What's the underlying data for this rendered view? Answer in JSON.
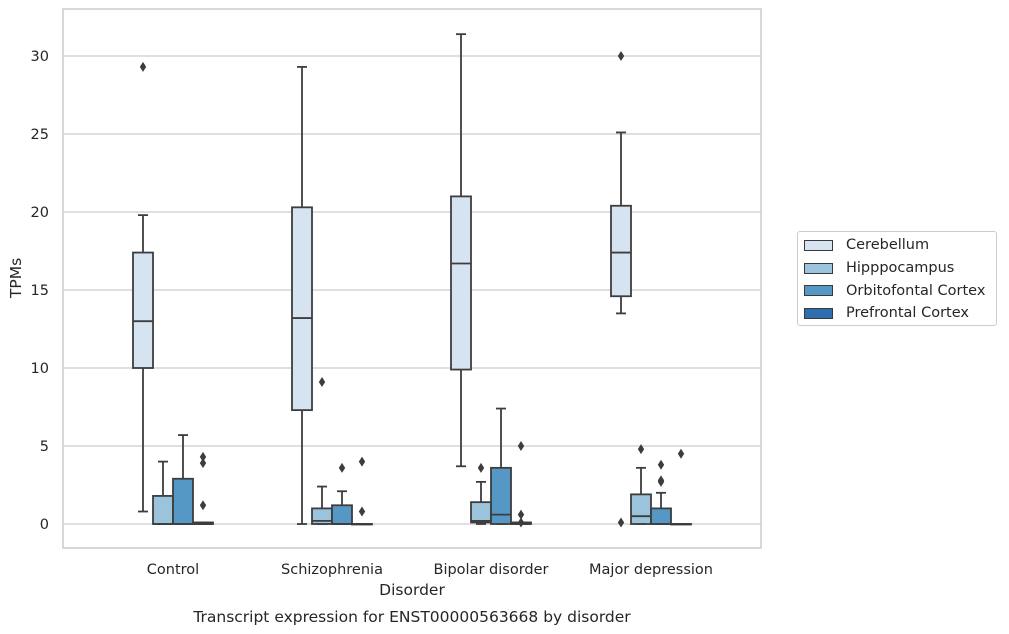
{
  "chart_data": {
    "type": "boxplot",
    "title": "Transcript expression for ENST00000563668 by disorder",
    "xlabel": "Disorder",
    "ylabel": "TPMs",
    "ylim": [
      -1.5,
      33
    ],
    "yticks": [
      0,
      5,
      10,
      15,
      20,
      25,
      30
    ],
    "grid": true,
    "legend_position": "right",
    "categories": [
      "Control",
      "Schizophrenia",
      "Bipolar disorder",
      "Major depression"
    ],
    "series": [
      {
        "name": "Cerebellum",
        "color": "#d6e4f2",
        "boxes": [
          {
            "whisker_low": 0.8,
            "q1": 10.0,
            "median": 13.0,
            "q3": 17.4,
            "whisker_high": 19.8,
            "outliers": [
              29.3
            ]
          },
          {
            "whisker_low": 0.0,
            "q1": 7.3,
            "median": 13.2,
            "q3": 20.3,
            "whisker_high": 29.3,
            "outliers": []
          },
          {
            "whisker_low": 3.7,
            "q1": 9.9,
            "median": 16.7,
            "q3": 21.0,
            "whisker_high": 31.4,
            "outliers": []
          },
          {
            "whisker_low": 13.5,
            "q1": 14.6,
            "median": 17.4,
            "q3": 20.4,
            "whisker_high": 25.1,
            "outliers": [
              30.0,
              0.1
            ]
          }
        ]
      },
      {
        "name": "Hipppocampus",
        "color": "#9bc3dc",
        "boxes": [
          {
            "whisker_low": 0.0,
            "q1": 0.0,
            "median": 0.0,
            "q3": 1.8,
            "whisker_high": 4.0,
            "outliers": []
          },
          {
            "whisker_low": 0.0,
            "q1": 0.0,
            "median": 0.2,
            "q3": 1.0,
            "whisker_high": 2.4,
            "outliers": [
              9.1
            ]
          },
          {
            "whisker_low": 0.0,
            "q1": 0.1,
            "median": 0.2,
            "q3": 1.4,
            "whisker_high": 2.7,
            "outliers": [
              3.6
            ]
          },
          {
            "whisker_low": 0.0,
            "q1": 0.0,
            "median": 0.5,
            "q3": 1.9,
            "whisker_high": 3.6,
            "outliers": [
              4.8
            ]
          }
        ]
      },
      {
        "name": "Orbitofontal Cortex",
        "color": "#5698c5",
        "boxes": [
          {
            "whisker_low": 0.0,
            "q1": 0.0,
            "median": 0.0,
            "q3": 2.9,
            "whisker_high": 5.7,
            "outliers": []
          },
          {
            "whisker_low": 0.0,
            "q1": 0.0,
            "median": 0.0,
            "q3": 1.2,
            "whisker_high": 2.1,
            "outliers": [
              3.6
            ]
          },
          {
            "whisker_low": 0.0,
            "q1": 0.0,
            "median": 0.6,
            "q3": 3.6,
            "whisker_high": 7.4,
            "outliers": []
          },
          {
            "whisker_low": 0.0,
            "q1": 0.0,
            "median": 0.0,
            "q3": 1.0,
            "whisker_high": 2.0,
            "outliers": [
              3.8,
              2.8,
              2.7
            ]
          }
        ]
      },
      {
        "name": "Prefrontal Cortex",
        "color": "#2f6eae",
        "boxes": [
          {
            "whisker_low": 0.0,
            "q1": 0.0,
            "median": 0.0,
            "q3": 0.1,
            "whisker_high": 0.1,
            "outliers": [
              4.3,
              3.9,
              1.2
            ]
          },
          {
            "whisker_low": 0.0,
            "q1": 0.0,
            "median": 0.0,
            "q3": 0.0,
            "whisker_high": 0.0,
            "outliers": [
              4.0,
              0.8
            ]
          },
          {
            "whisker_low": 0.0,
            "q1": 0.0,
            "median": 0.0,
            "q3": 0.1,
            "whisker_high": 0.1,
            "outliers": [
              5.0,
              0.6,
              0.1
            ]
          },
          {
            "whisker_low": 0.0,
            "q1": 0.0,
            "median": 0.0,
            "q3": 0.0,
            "whisker_high": 0.0,
            "outliers": [
              4.5
            ]
          }
        ]
      }
    ]
  }
}
